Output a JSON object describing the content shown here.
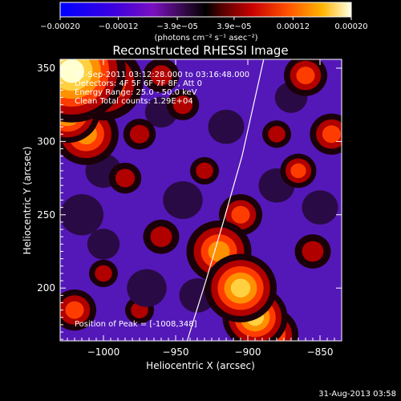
{
  "chart_data": {
    "type": "heatmap",
    "title": "Reconstructed RHESSI Image",
    "xlabel": "Heliocentric X (arcsec)",
    "ylabel": "Heliocentric Y (arcsec)",
    "xlim": [
      -1030,
      -835
    ],
    "ylim": [
      164,
      356
    ],
    "xticks": [
      -1000,
      -950,
      -900,
      -850
    ],
    "yticks": [
      200,
      250,
      300,
      350
    ],
    "xtick_labels": [
      "−1000",
      "−950",
      "−900",
      "−850"
    ],
    "ytick_labels": [
      "200",
      "250",
      "300",
      "350"
    ],
    "colorbar": {
      "range": [
        -0.0002,
        0.0002
      ],
      "ticks": [
        -0.0002,
        -0.00012,
        -3.9e-05,
        3.9e-05,
        0.00012,
        0.0002
      ],
      "tick_labels": [
        "−0.00020",
        "−0.00012",
        "−3.9e−05",
        "3.9e−05",
        "0.00012",
        "0.00020"
      ],
      "units_label": "(photons cm⁻² s⁻¹ asec⁻²)"
    },
    "annotations": [
      "31-Sep-2011 03:12:28.000 to 03:16:48.000",
      "Detectors: 4F 5F 6F 7F 8F, Att 0",
      "Energy Range: 25.0 - 50.0 keV",
      "Clean    Total counts: 1.29E+04"
    ],
    "peak_label": "Position of Peak = [-1008,348]",
    "limb": [
      [
        -942,
        164
      ],
      [
        -929,
        205
      ],
      [
        -917,
        245
      ],
      [
        -904,
        290
      ],
      [
        -889,
        356
      ]
    ],
    "blobs": [
      {
        "x": -1022,
        "y": 348,
        "v": 1.0,
        "r": 30
      },
      {
        "x": -1000,
        "y": 340,
        "v": 0.7,
        "r": 22
      },
      {
        "x": -1012,
        "y": 305,
        "v": 0.6,
        "r": 18
      },
      {
        "x": -1025,
        "y": 320,
        "v": 0.8,
        "r": 18
      },
      {
        "x": -920,
        "y": 225,
        "v": 0.6,
        "r": 18
      },
      {
        "x": -905,
        "y": 200,
        "v": 0.85,
        "r": 20
      },
      {
        "x": -895,
        "y": 180,
        "v": 0.75,
        "r": 18
      },
      {
        "x": -885,
        "y": 168,
        "v": 0.7,
        "r": 16
      },
      {
        "x": -905,
        "y": 250,
        "v": 0.5,
        "r": 12
      },
      {
        "x": -860,
        "y": 345,
        "v": 0.55,
        "r": 12
      },
      {
        "x": -842,
        "y": 305,
        "v": 0.55,
        "r": 12
      },
      {
        "x": -865,
        "y": 280,
        "v": 0.5,
        "r": 10
      },
      {
        "x": -960,
        "y": 345,
        "v": 0.35,
        "r": 10
      },
      {
        "x": -945,
        "y": 325,
        "v": 0.4,
        "r": 9
      },
      {
        "x": -975,
        "y": 305,
        "v": 0.35,
        "r": 9
      },
      {
        "x": -985,
        "y": 275,
        "v": 0.35,
        "r": 9
      },
      {
        "x": -960,
        "y": 235,
        "v": 0.4,
        "r": 10
      },
      {
        "x": -1000,
        "y": 210,
        "v": 0.3,
        "r": 8
      },
      {
        "x": -930,
        "y": 280,
        "v": 0.3,
        "r": 8
      },
      {
        "x": -1020,
        "y": 185,
        "v": 0.45,
        "r": 12
      },
      {
        "x": -975,
        "y": 185,
        "v": 0.3,
        "r": 8
      },
      {
        "x": -880,
        "y": 305,
        "v": 0.35,
        "r": 8
      },
      {
        "x": -855,
        "y": 225,
        "v": 0.4,
        "r": 10
      },
      {
        "x": -1015,
        "y": 250,
        "v": -0.35,
        "r": 12
      },
      {
        "x": -1000,
        "y": 280,
        "v": -0.3,
        "r": 10
      },
      {
        "x": -945,
        "y": 260,
        "v": -0.35,
        "r": 11
      },
      {
        "x": -970,
        "y": 200,
        "v": -0.3,
        "r": 11
      },
      {
        "x": -935,
        "y": 195,
        "v": -0.3,
        "r": 10
      },
      {
        "x": -880,
        "y": 270,
        "v": -0.3,
        "r": 10
      },
      {
        "x": -850,
        "y": 255,
        "v": -0.3,
        "r": 10
      },
      {
        "x": -915,
        "y": 310,
        "v": -0.3,
        "r": 10
      },
      {
        "x": -870,
        "y": 330,
        "v": -0.25,
        "r": 9
      },
      {
        "x": -1000,
        "y": 230,
        "v": -0.25,
        "r": 9
      },
      {
        "x": -960,
        "y": 320,
        "v": -0.25,
        "r": 9
      }
    ]
  },
  "footer": {
    "timestamp": "31-Aug-2013 03:58"
  }
}
